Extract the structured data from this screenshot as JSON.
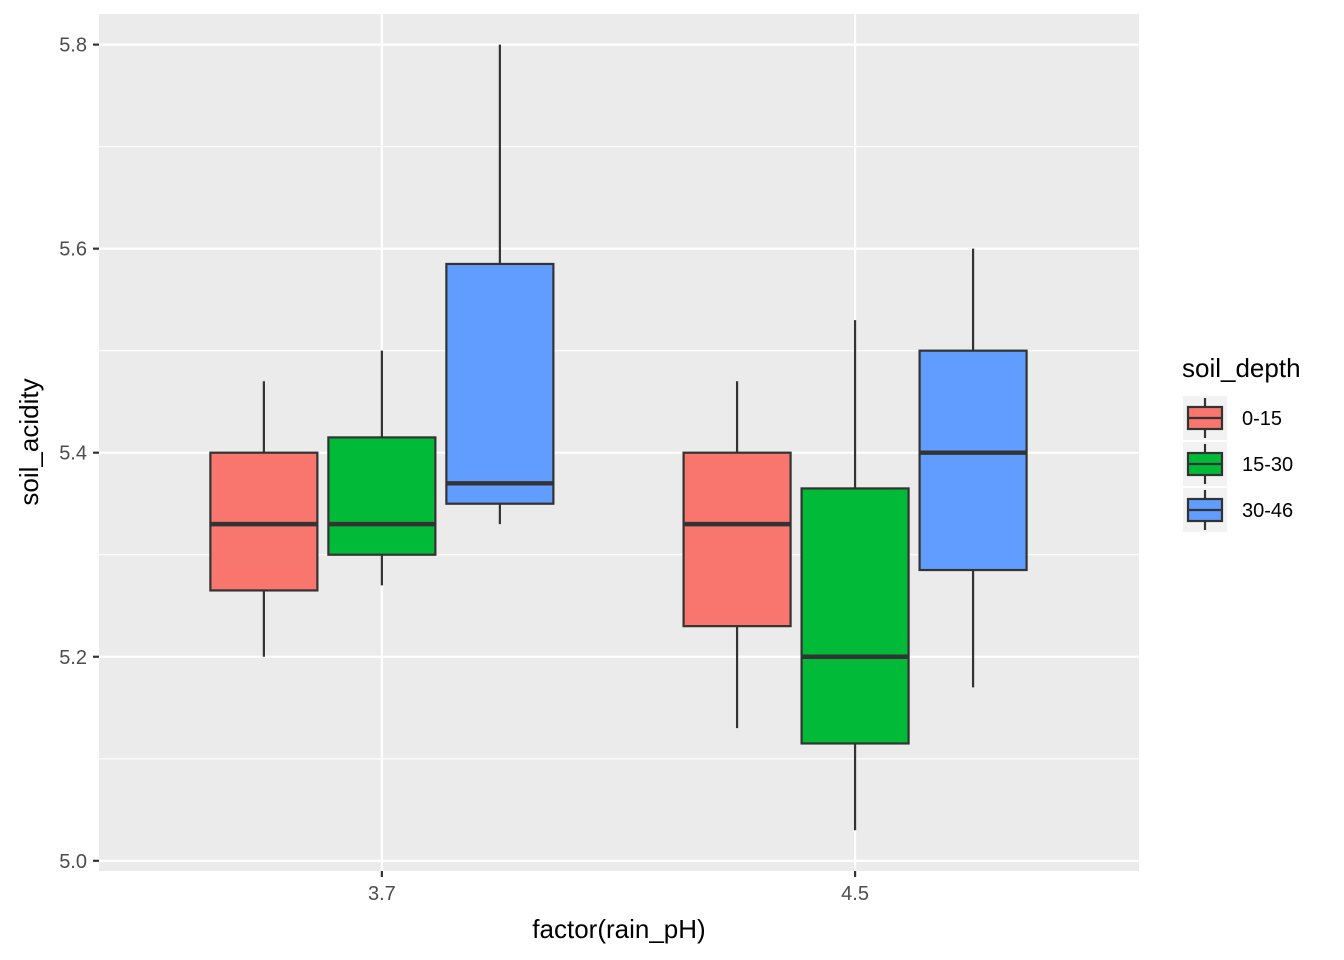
{
  "chart_data": {
    "type": "box",
    "xlabel": "factor(rain_pH)",
    "ylabel": "soil_acidity",
    "ylim": [
      4.99,
      5.83
    ],
    "y_ticks": [
      "5.0",
      "5.2",
      "5.4",
      "5.6",
      "5.8"
    ],
    "categories": [
      "3.7",
      "4.5"
    ],
    "legend": {
      "title": "soil_depth",
      "position": "right",
      "items": [
        {
          "label": "0-15",
          "color": "#F8766D"
        },
        {
          "label": "15-30",
          "color": "#00BA38"
        },
        {
          "label": "30-46",
          "color": "#619CFF"
        }
      ]
    },
    "series": [
      {
        "name": "0-15",
        "color": "#F8766D",
        "boxes": [
          {
            "category": "3.7",
            "min": 5.2,
            "q1": 5.265,
            "median": 5.33,
            "q3": 5.4,
            "max": 5.47
          },
          {
            "category": "4.5",
            "min": 5.13,
            "q1": 5.23,
            "median": 5.33,
            "q3": 5.4,
            "max": 5.47
          }
        ]
      },
      {
        "name": "15-30",
        "color": "#00BA38",
        "boxes": [
          {
            "category": "3.7",
            "min": 5.27,
            "q1": 5.3,
            "median": 5.33,
            "q3": 5.415,
            "max": 5.5
          },
          {
            "category": "4.5",
            "min": 5.03,
            "q1": 5.115,
            "median": 5.2,
            "q3": 5.365,
            "max": 5.53
          }
        ]
      },
      {
        "name": "30-46",
        "color": "#619CFF",
        "boxes": [
          {
            "category": "3.7",
            "min": 5.33,
            "q1": 5.35,
            "median": 5.37,
            "q3": 5.585,
            "max": 5.8
          },
          {
            "category": "4.5",
            "min": 5.17,
            "q1": 5.285,
            "median": 5.4,
            "q3": 5.5,
            "max": 5.6
          }
        ]
      }
    ],
    "grid": true,
    "panel_background": "#EBEBEB",
    "grid_color": "#FFFFFF"
  }
}
